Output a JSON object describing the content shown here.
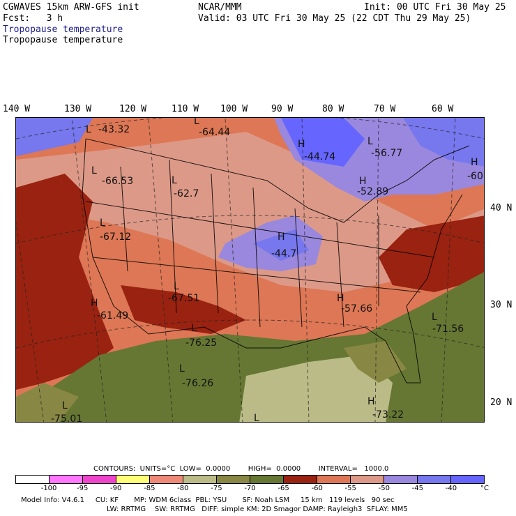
{
  "header": {
    "model": "CGWAVES 15km ARW-GFS init",
    "org": "NCAR/MMM",
    "init": "Init: 00 UTC Fri 30 May 25",
    "fcst": "Fcst:   3 h",
    "valid": "Valid: 03 UTC Fri 30 May 25 (22 CDT Thu 29 May 25)",
    "field_title_1": "Tropopause temperature",
    "field_title_2": "Tropopause temperature"
  },
  "axes": {
    "longitudes": [
      "140 W",
      "130 W",
      "120 W",
      "110 W",
      "100 W",
      "90 W",
      "80 W",
      "70 W",
      "60 W"
    ],
    "latitudes": [
      "40 N",
      "30 N",
      "20 N"
    ]
  },
  "map_labels": [
    {
      "kind": "L",
      "value": "-43.32"
    },
    {
      "kind": "L",
      "value": "-64.44"
    },
    {
      "kind": "H",
      "value": "-44.74"
    },
    {
      "kind": "L",
      "value": "-56.77"
    },
    {
      "kind": "H",
      "value": "-60"
    },
    {
      "kind": "L",
      "value": "-66.53"
    },
    {
      "kind": "L",
      "value": "-62.7"
    },
    {
      "kind": "H",
      "value": "-52.89"
    },
    {
      "kind": "L",
      "value": "-67.12"
    },
    {
      "kind": "H",
      "value": "-44.7"
    },
    {
      "kind": "H",
      "value": "-61.49"
    },
    {
      "kind": "L",
      "value": "-67.51"
    },
    {
      "kind": "H",
      "value": "-57.66"
    },
    {
      "kind": "L",
      "value": "-71.56"
    },
    {
      "kind": "L",
      "value": "-76.25"
    },
    {
      "kind": "L",
      "value": "-76.26"
    },
    {
      "kind": "L",
      "value": "-75.01"
    },
    {
      "kind": "H",
      "value": "-73.22"
    },
    {
      "kind": "L",
      "value": ""
    }
  ],
  "contours": {
    "text": "CONTOURS:  UNITS=°C  LOW=  0.0000        HIGH=  0.0000        INTERVAL=   1000.0"
  },
  "colorbar": {
    "colors": [
      "#ffffff",
      "#ff77ff",
      "#ee44cc",
      "#ffff77",
      "#ee8877",
      "#bbbb88",
      "#888844",
      "#667733",
      "#992211",
      "#dd7755",
      "#dd9988",
      "#9988dd",
      "#7777ee",
      "#6666ff"
    ],
    "labels": [
      "-100",
      "-95",
      "-90",
      "-85",
      "-80",
      "-75",
      "-70",
      "-65",
      "-60",
      "-55",
      "-50",
      "-45",
      "-40",
      "°C"
    ]
  },
  "model_info": {
    "line1": "Model Info: V4.6.1     CU: KF       MP: WDM 6class  PBL: YSU       SF: Noah LSM     15 km   119 levels   90 sec",
    "line2": "LW: RRTMG    SW: RRTMG   DIFF: simple KM: 2D Smagor DAMP: Rayleigh3  SFLAY: MM5"
  }
}
